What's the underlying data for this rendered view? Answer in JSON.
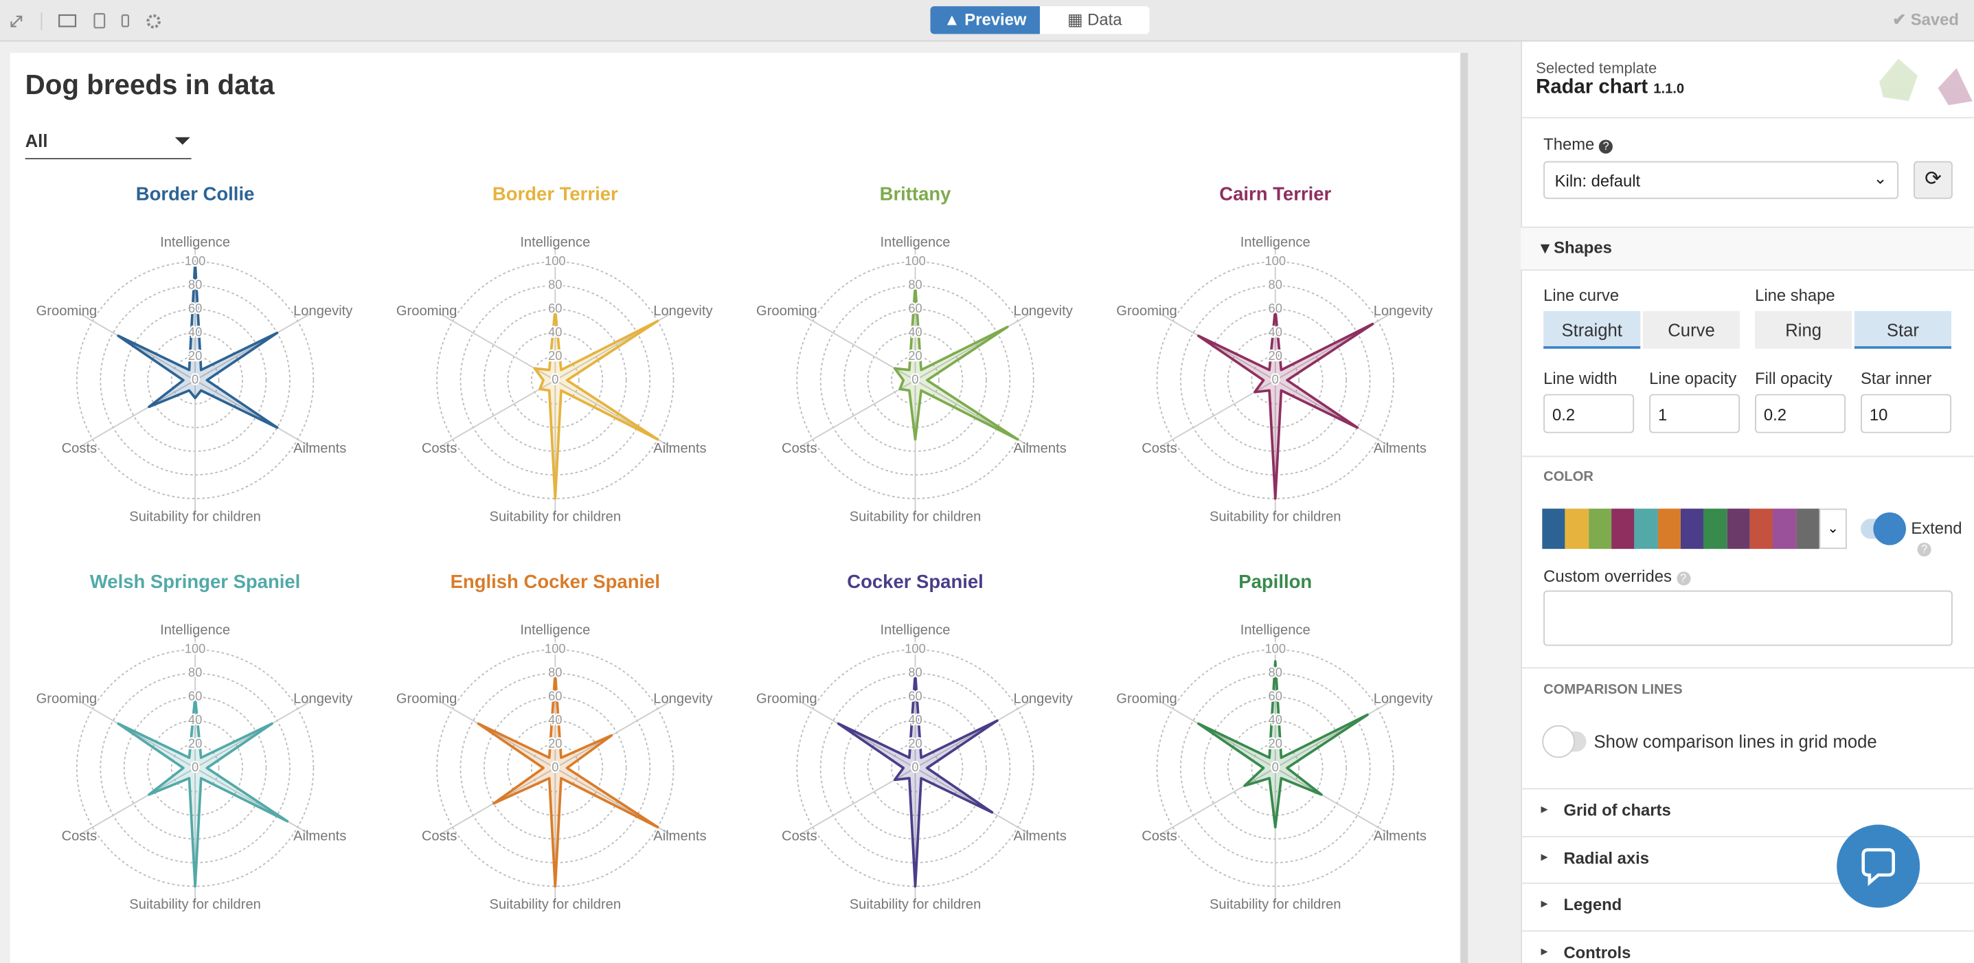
{
  "toolbar": {
    "preview": "Preview",
    "data": "Data",
    "status": "Saved"
  },
  "chart_data": {
    "type": "radar",
    "title": "Dog breeds in data",
    "filter": "All",
    "axes": [
      "Intelligence",
      "Longevity",
      "Ailments",
      "Suitability for children",
      "Costs",
      "Grooming"
    ],
    "rlim": [
      0,
      100
    ],
    "rticks": [
      0,
      20,
      40,
      60,
      80,
      100
    ],
    "series": [
      {
        "name": "Border Collie",
        "color": "#2d6394",
        "values": [
          100,
          80,
          80,
          15,
          45,
          75
        ]
      },
      {
        "name": "Border Terrier",
        "color": "#e5b33e",
        "values": [
          60,
          100,
          100,
          100,
          15,
          20
        ]
      },
      {
        "name": "Brittany",
        "color": "#7dab4d",
        "values": [
          80,
          90,
          100,
          50,
          15,
          20
        ]
      },
      {
        "name": "Cairn Terrier",
        "color": "#8e2f60",
        "values": [
          60,
          95,
          80,
          100,
          20,
          75
        ]
      },
      {
        "name": "Welsh Springer Spaniel",
        "color": "#52a9a8",
        "values": [
          60,
          75,
          90,
          100,
          45,
          75
        ]
      },
      {
        "name": "English Cocker Spaniel",
        "color": "#d97c2a",
        "values": [
          80,
          55,
          100,
          100,
          60,
          75
        ]
      },
      {
        "name": "Cocker Spaniel",
        "color": "#4b3d89",
        "values": [
          80,
          80,
          75,
          100,
          20,
          75
        ]
      },
      {
        "name": "Papillon",
        "color": "#388a4d",
        "values": [
          90,
          90,
          45,
          50,
          30,
          75
        ]
      }
    ]
  },
  "settings": {
    "selected_template_label": "Selected template",
    "template_name": "Radar chart",
    "template_version": "1.1.0",
    "theme_label": "Theme",
    "theme_value": "Kiln: default",
    "shapes_section": "Shapes",
    "line_curve": {
      "label": "Line curve",
      "options": [
        "Straight",
        "Curve"
      ]
    },
    "line_shape": {
      "label": "Line shape",
      "options": [
        "Ring",
        "Star"
      ]
    },
    "fields": [
      {
        "label": "Line width",
        "value": "0.2"
      },
      {
        "label": "Line opacity",
        "value": "1"
      },
      {
        "label": "Fill opacity",
        "value": "0.2"
      },
      {
        "label": "Star inner",
        "value": "10"
      }
    ],
    "color_label": "COLOR",
    "palette": [
      "#2d6394",
      "#e5b33e",
      "#7dab4d",
      "#8e2f60",
      "#52a9a8",
      "#d97c2a",
      "#4b3d89",
      "#388a4d",
      "#6c3a68",
      "#c4523f",
      "#9a5199",
      "#6b6b6b"
    ],
    "extend_label": "Extend",
    "custom_overrides_label": "Custom overrides",
    "comparison_label": "COMPARISON LINES",
    "comparison_toggle": "Show comparison lines in grid mode",
    "sections": [
      "Grid of charts",
      "Radial axis",
      "Legend",
      "Controls"
    ]
  }
}
